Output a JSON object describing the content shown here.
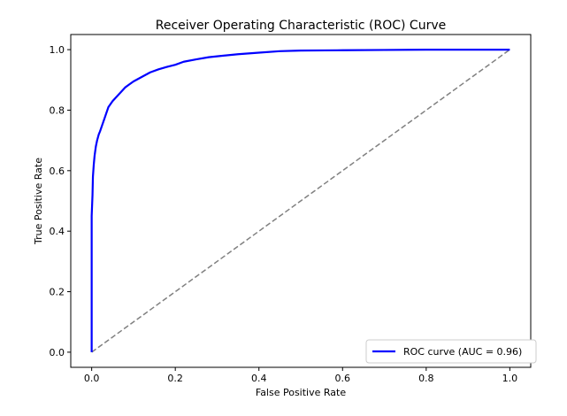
{
  "chart_data": {
    "type": "line",
    "title": "Receiver Operating Characteristic (ROC) Curve",
    "xlabel": "False Positive Rate",
    "ylabel": "True Positive Rate",
    "xlim": [
      -0.05,
      1.05
    ],
    "ylim": [
      -0.05,
      1.05
    ],
    "xticks": [
      0.0,
      0.2,
      0.4,
      0.6,
      0.8,
      1.0
    ],
    "yticks": [
      0.0,
      0.2,
      0.4,
      0.6,
      0.8,
      1.0
    ],
    "xtick_labels": [
      "0.0",
      "0.2",
      "0.4",
      "0.6",
      "0.8",
      "1.0"
    ],
    "ytick_labels": [
      "0.0",
      "0.2",
      "0.4",
      "0.6",
      "0.8",
      "1.0"
    ],
    "grid": false,
    "legend_position": "lower right",
    "series": [
      {
        "name": "ROC curve (AUC = 0.96)",
        "color": "#0000ff",
        "style": "solid",
        "x": [
          0.0,
          0.0,
          0.0,
          0.002,
          0.003,
          0.005,
          0.007,
          0.01,
          0.013,
          0.017,
          0.02,
          0.025,
          0.03,
          0.035,
          0.04,
          0.045,
          0.05,
          0.06,
          0.07,
          0.08,
          0.09,
          0.1,
          0.12,
          0.14,
          0.16,
          0.18,
          0.2,
          0.22,
          0.25,
          0.28,
          0.3,
          0.35,
          0.4,
          0.45,
          0.5,
          0.6,
          0.7,
          0.8,
          0.9,
          1.0
        ],
        "y": [
          0.0,
          0.3,
          0.45,
          0.52,
          0.58,
          0.62,
          0.65,
          0.68,
          0.7,
          0.72,
          0.73,
          0.75,
          0.77,
          0.79,
          0.81,
          0.82,
          0.83,
          0.845,
          0.86,
          0.875,
          0.885,
          0.895,
          0.91,
          0.925,
          0.935,
          0.943,
          0.95,
          0.96,
          0.968,
          0.975,
          0.978,
          0.985,
          0.99,
          0.995,
          0.997,
          0.998,
          0.999,
          1.0,
          1.0,
          1.0
        ]
      },
      {
        "name": "",
        "color": "#808080",
        "style": "dashed",
        "x": [
          0.0,
          1.0
        ],
        "y": [
          0.0,
          1.0
        ]
      }
    ]
  }
}
